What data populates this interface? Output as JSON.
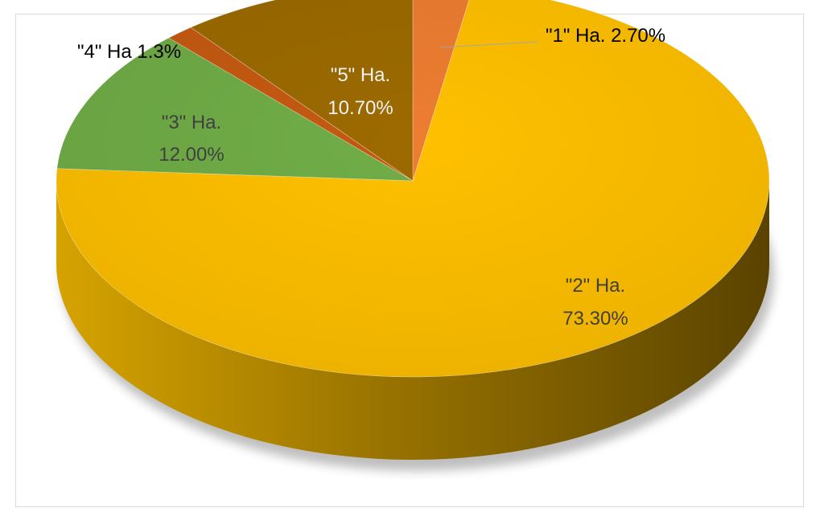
{
  "chart_data": {
    "type": "pie",
    "title": "",
    "slices": [
      {
        "name": "\"1\" Ha.",
        "value": 2.7,
        "color": "#ed7d31"
      },
      {
        "name": "\"2\" Ha.",
        "value": 73.3,
        "color": "#ffc000"
      },
      {
        "name": "\"3\" Ha.",
        "value": 12.0,
        "color": "#70ad47"
      },
      {
        "name": "\"4\" Ha",
        "value": 1.3,
        "color": "#c55a11"
      },
      {
        "name": "\"5\" Ha.",
        "value": 10.7,
        "color": "#9c6a00"
      }
    ],
    "labels": {
      "s1": "\"1\" Ha.  2.70%",
      "s2_name": "\"2\" Ha.",
      "s2_pct": "73.30%",
      "s3_name": "\"3\" Ha.",
      "s3_pct": "12.00%",
      "s4": "\"4\" Ha 1.3%",
      "s5_name": "\"5\" Ha.",
      "s5_pct": "10.70%"
    },
    "legend": "none",
    "style": "3d"
  }
}
